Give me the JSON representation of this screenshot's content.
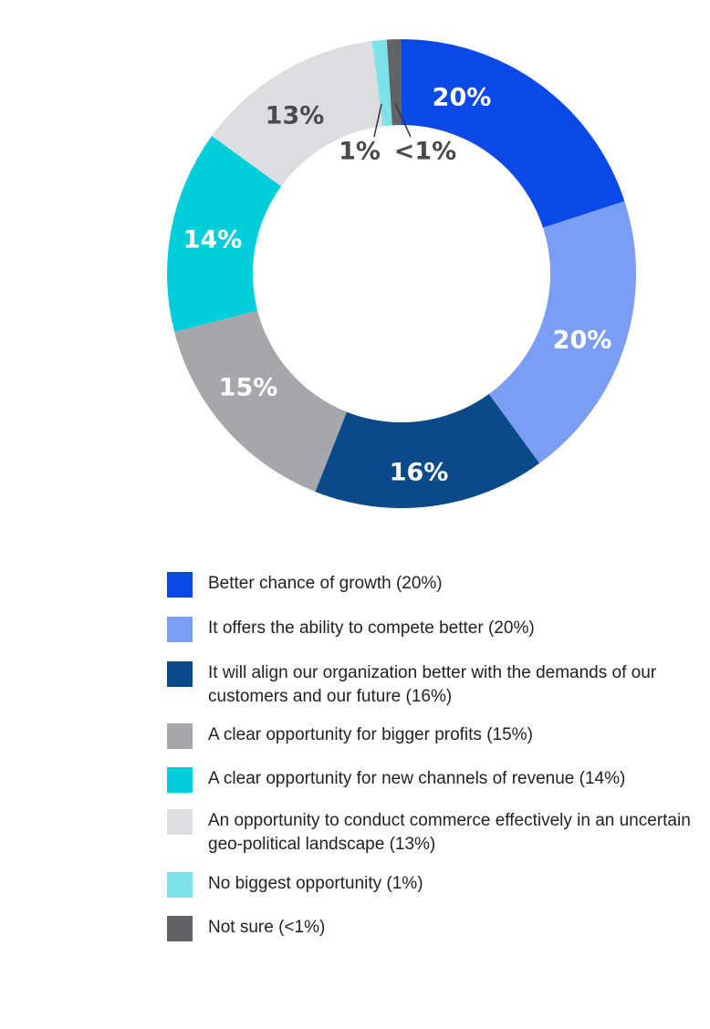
{
  "chart_data": {
    "type": "pie",
    "subtype": "donut",
    "start": "top",
    "direction": "clockwise",
    "legend_position": "bottom",
    "slices": [
      {
        "value": 20,
        "label": "20%",
        "legend": "Better chance of growth (20%)",
        "color": "#0b48e8",
        "label_color": "#ffffff"
      },
      {
        "value": 20,
        "label": "20%",
        "legend": "It offers the ability to compete better (20%)",
        "color": "#7b9ef4",
        "label_color": "#ffffff"
      },
      {
        "value": 16,
        "label": "16%",
        "legend": "It will align our organization better with the demands of our customers and our future (16%)",
        "color": "#0b4a8a",
        "label_color": "#ffffff"
      },
      {
        "value": 15,
        "label": "15%",
        "legend": "A clear opportunity for bigger profits (15%)",
        "color": "#a6a7ab",
        "label_color": "#ffffff"
      },
      {
        "value": 14,
        "label": "14%",
        "legend": "A clear opportunity for new channels of revenue (14%)",
        "color": "#00cfdb",
        "label_color": "#ffffff"
      },
      {
        "value": 13,
        "label": "13%",
        "legend": "An opportunity to conduct commerce effectively in an uncertain geo-political landscape (13%)",
        "color": "#dcdde0",
        "label_color": "#4a4a4d"
      },
      {
        "value": 1,
        "label": "1%",
        "legend": "No biggest opportunity (1%)",
        "color": "#7ee2ea",
        "label_color": "#4a4a4d"
      },
      {
        "value": 1,
        "label": "<1%",
        "legend": "Not sure (<1%)",
        "color": "#626366",
        "label_color": "#4a4a4d"
      }
    ]
  }
}
